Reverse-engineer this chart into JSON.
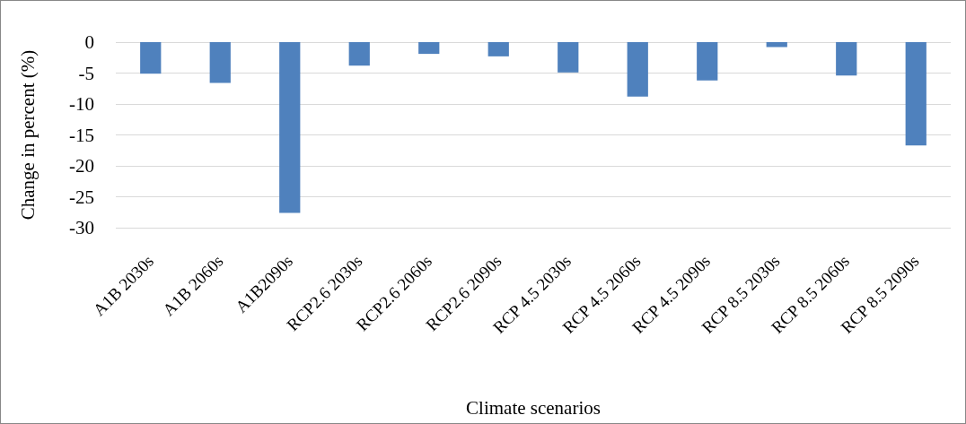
{
  "chart_data": {
    "type": "bar",
    "xlabel": "Climate scenarios",
    "ylabel": "Change in percent (%)",
    "categories": [
      "A1B 2030s",
      "A1B 2060s",
      "A1B2090s",
      "RCP2.6 2030s",
      "RCP2.6 2060s",
      "RCP2.6 2090s",
      "RCP 4.5 2030s",
      "RCP 4.5 2060s",
      "RCP 4.5 2090s",
      "RCP 8.5 2030s",
      "RCP 8.5 2060s",
      "RCP 8.5 2090s"
    ],
    "values": [
      -5.1,
      -6.6,
      -27.6,
      -3.8,
      -1.9,
      -2.3,
      -4.9,
      -8.8,
      -6.2,
      -0.8,
      -5.4,
      -16.7
    ],
    "color": "#4f81bd",
    "ylim": [
      -30,
      0
    ],
    "yticks": [
      0,
      -5,
      -10,
      -15,
      -20,
      -25,
      -30
    ],
    "grid": "y"
  }
}
